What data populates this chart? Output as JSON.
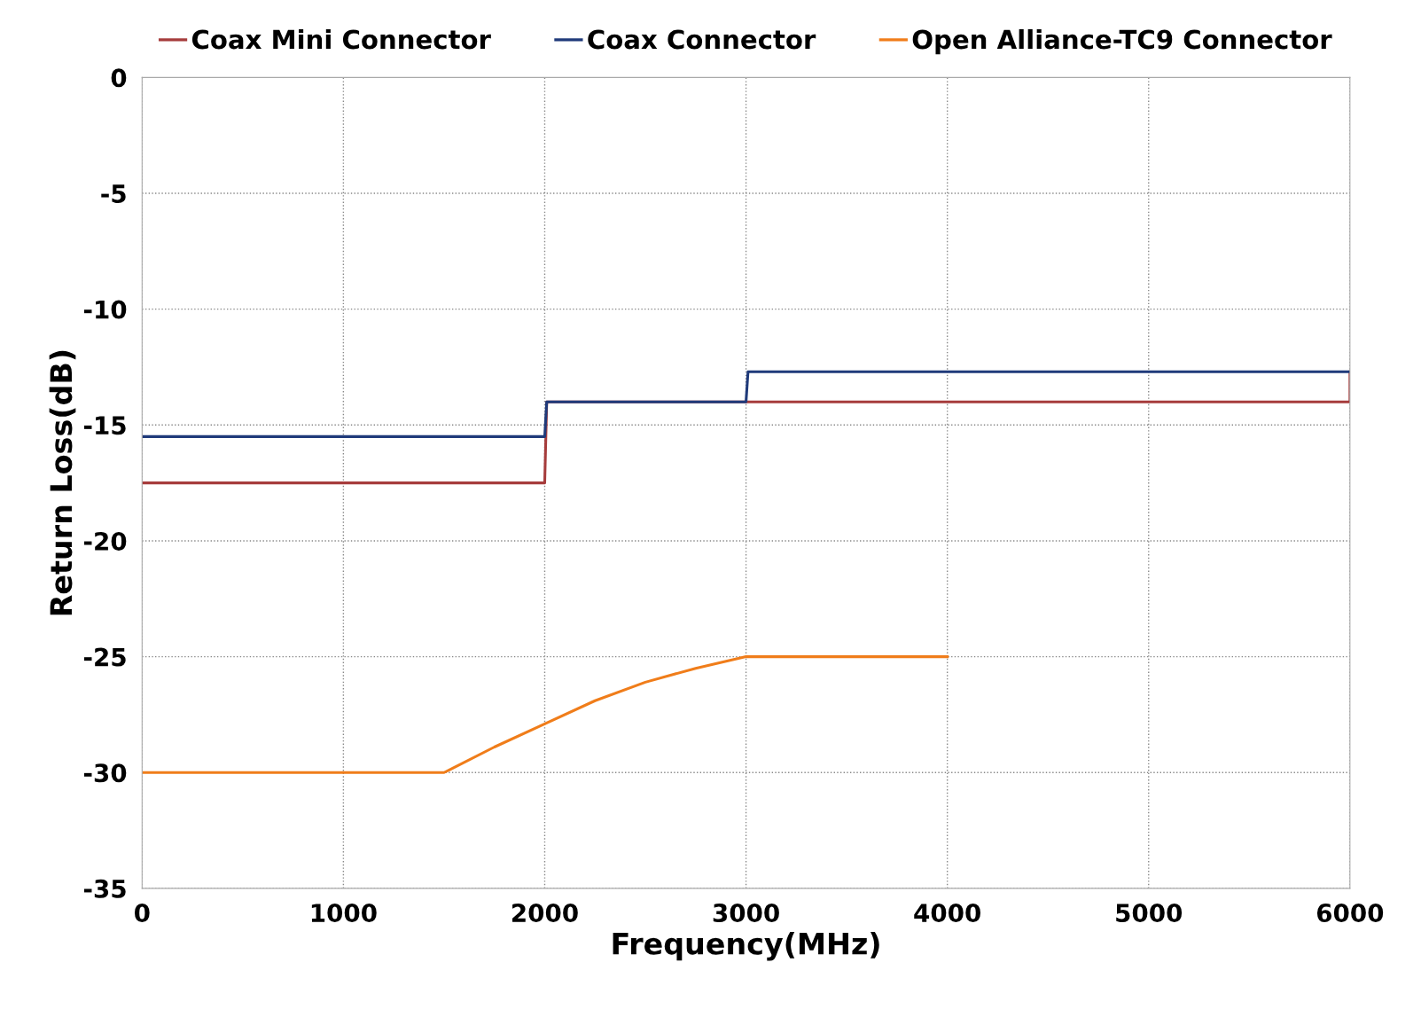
{
  "chart_data": {
    "type": "line",
    "xlabel": "Frequency(MHz)",
    "ylabel": "Return Loss(dB)",
    "xlim": [
      0,
      6000
    ],
    "xticks": [
      0,
      1000,
      2000,
      3000,
      4000,
      5000,
      6000
    ],
    "ylim": [
      -35,
      0
    ],
    "yticks": [
      -35,
      -30,
      -25,
      -20,
      -15,
      -10,
      -5,
      0
    ],
    "grid": true,
    "legend": "top",
    "line_style": "solid",
    "marker": "none",
    "series": [
      {
        "name": "Coax Mini Connector",
        "color": "#a63c3c",
        "x": [
          0,
          2000,
          2010,
          3000,
          6000,
          6000
        ],
        "values": [
          -17.5,
          -17.5,
          -14,
          -14,
          -14,
          -12.7
        ]
      },
      {
        "name": "Coax Connector",
        "color": "#1f3a7a",
        "x": [
          0,
          2000,
          2010,
          3000,
          3010,
          6000
        ],
        "values": [
          -15.5,
          -15.5,
          -14,
          -14,
          -12.7,
          -12.7
        ]
      },
      {
        "name": "Open Alliance-TC9 Connector",
        "color": "#f07d1a",
        "x": [
          0,
          1500,
          1750,
          2000,
          2250,
          2500,
          2750,
          3000,
          4000
        ],
        "values": [
          -30,
          -30,
          -28.9,
          -27.9,
          -26.9,
          -26.1,
          -25.5,
          -25,
          -25
        ]
      }
    ]
  }
}
